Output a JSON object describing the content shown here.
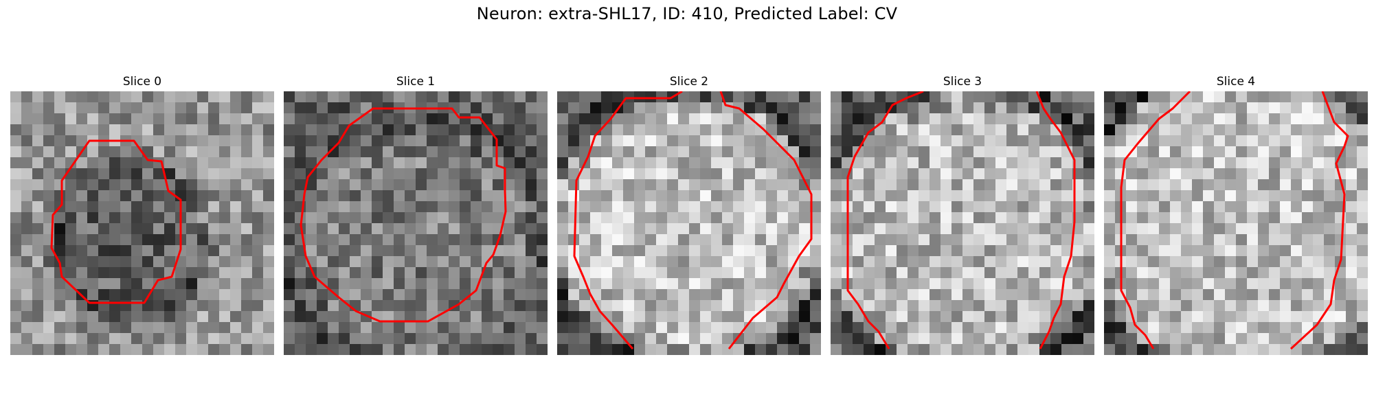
{
  "figure": {
    "suptitle": "Neuron: extra-SHL17, ID: 410, Predicted Label: CV"
  },
  "panels": [
    {
      "title": "Slice 0"
    },
    {
      "title": "Slice 1"
    },
    {
      "title": "Slice 2"
    },
    {
      "title": "Slice 3"
    },
    {
      "title": "Slice 4"
    }
  ],
  "colors": {
    "contour": "#ff0000",
    "background": "#ffffff"
  }
}
